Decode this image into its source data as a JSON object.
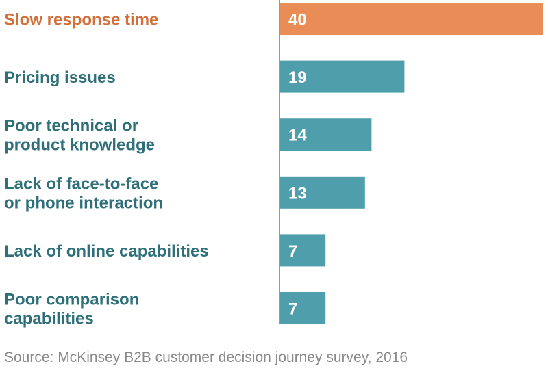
{
  "chart_data": {
    "type": "bar",
    "orientation": "horizontal",
    "title": "",
    "xlabel": "",
    "ylabel": "",
    "categories": [
      [
        "Slow response time"
      ],
      [
        "Pricing issues"
      ],
      [
        "Poor technical or",
        "product knowledge"
      ],
      [
        "Lack of face-to-face",
        "or phone interaction"
      ],
      [
        "Lack of online capabilities"
      ],
      [
        "Poor comparison",
        "capabilities"
      ]
    ],
    "values": [
      40,
      19,
      14,
      13,
      7,
      7
    ],
    "highlight_index": 0,
    "xlim": [
      0,
      40
    ],
    "grid": false,
    "legend": "none",
    "colors": {
      "highlight": "#E98C55",
      "bar": "#4E9FAB",
      "highlight_label": "#D2703A",
      "label": "#2E6F7A",
      "axis": "#999999"
    }
  },
  "source": "Source: McKinsey B2B customer decision journey survey, 2016"
}
